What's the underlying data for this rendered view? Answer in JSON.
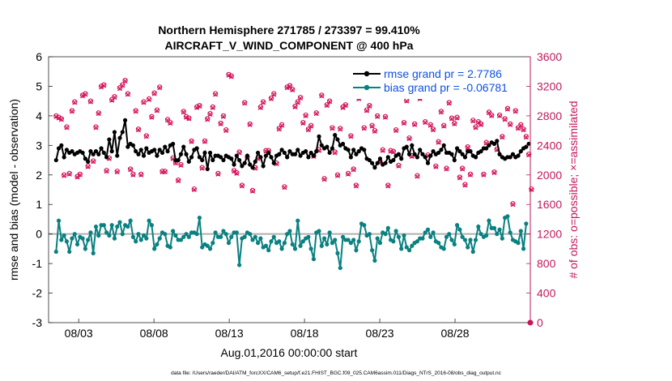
{
  "chart_data": {
    "type": "line",
    "title_line1": "Northern Hemisphere 271785 / 273397 = 99.410%",
    "title_line2": "AIRCRAFT_V_WIND_COMPONENT @ 400 hPa",
    "ylabel_left": "rmse and bias (model - observation)",
    "ylabel_right": "# of obs: o=possible; ×=assimilated",
    "xlabel": "Aug.01,2016 00:00:00 start",
    "footer": "data file: /Users/raeder/DAI/ATM_forcXX/CAM6_setup/f.e21.FHIST_BGC.f09_025.CAM6assim.011/Diags_NTrS_2016-08/obs_diag_output.nc",
    "xlim": [
      1,
      33
    ],
    "xticks": [
      3,
      8,
      13,
      18,
      23,
      28
    ],
    "xtick_labels": [
      "08/03",
      "08/08",
      "08/13",
      "08/18",
      "08/23",
      "08/28"
    ],
    "ylim_left": [
      -3,
      6
    ],
    "yticks_left": [
      -3,
      -2,
      -1,
      0,
      1,
      2,
      3,
      4,
      5,
      6
    ],
    "ytick_labels_left": [
      "-3",
      "-2",
      "-1",
      "0",
      "1",
      "2",
      "3",
      "4",
      "5",
      "6"
    ],
    "ylim_right": [
      0,
      3600
    ],
    "yticks_right": [
      0,
      400,
      800,
      1200,
      1600,
      2000,
      2400,
      2800,
      3200,
      3600
    ],
    "ytick_labels_right": [
      "0",
      "400",
      "800",
      "1200",
      "1600",
      "2000",
      "2400",
      "2800",
      "3200",
      "3600"
    ],
    "legend": [
      {
        "label": "rmse grand pr = 2.7786",
        "series": "rmse"
      },
      {
        "label": "bias grand pr = -0.06781",
        "series": "bias"
      }
    ],
    "colors": {
      "rmse": "#000000",
      "bias": "#0a8080",
      "obs": "#d4145a",
      "right_axis": "#c2185b",
      "legend_text": "#1050e0",
      "zero_line": "#b0b0b0"
    },
    "rmse": [
      2.5,
      2.9,
      3.0,
      2.6,
      2.85,
      2.75,
      2.8,
      2.7,
      2.75,
      2.8,
      2.75,
      2.55,
      2.45,
      2.8,
      2.7,
      2.8,
      2.7,
      2.9,
      2.75,
      2.6,
      3.2,
      2.8,
      3.45,
      2.65,
      3.25,
      3.45,
      3.85,
      2.95,
      3.05,
      3.0,
      2.8,
      2.7,
      2.85,
      2.65,
      2.9,
      2.75,
      2.8,
      2.85,
      2.65,
      2.85,
      2.75,
      2.95,
      2.8,
      3.0,
      3.05,
      2.5,
      2.5,
      2.7,
      2.95,
      2.7,
      2.45,
      2.6,
      2.85,
      2.9,
      2.6,
      2.5,
      2.75,
      2.2,
      2.75,
      2.5,
      2.65,
      2.65,
      2.6,
      2.5,
      2.65,
      2.6,
      2.55,
      2.35,
      2.65,
      2.5,
      2.3,
      2.4,
      2.65,
      2.35,
      2.25,
      2.45,
      2.75,
      2.6,
      2.3,
      2.65,
      2.75,
      2.6,
      2.4,
      2.65,
      2.7,
      2.85,
      2.75,
      2.6,
      2.8,
      2.7,
      2.7,
      2.85,
      2.65,
      2.75,
      2.8,
      2.6,
      2.75,
      2.65,
      2.8,
      3.3,
      3.0,
      2.9,
      2.95,
      2.75,
      2.9,
      3.35,
      3.2,
      3.0,
      3.05,
      2.9,
      2.85,
      2.6,
      2.85,
      2.7,
      2.8,
      2.9,
      2.85,
      2.55,
      2.5,
      2.4,
      2.25,
      2.4,
      2.55,
      2.35,
      2.4,
      2.6,
      2.45,
      2.5,
      2.65,
      2.7,
      2.55,
      2.9,
      2.95,
      2.7,
      3.0,
      2.7,
      2.6,
      2.85,
      2.7,
      2.6,
      2.4,
      2.65,
      2.8,
      2.7,
      2.75,
      2.85,
      3.0,
      2.75,
      2.75,
      2.7,
      2.5,
      2.9,
      2.8,
      2.7,
      2.6,
      2.8,
      2.8,
      2.65,
      2.6,
      2.75,
      2.8,
      2.9,
      2.9,
      3.0,
      3.1,
      3.05,
      3.15,
      2.7,
      2.6,
      2.55,
      2.6,
      2.6,
      2.7,
      2.6,
      2.65,
      2.8,
      2.9,
      2.95,
      3.05
    ],
    "bias": [
      -0.6,
      0.45,
      -0.2,
      -0.05,
      -0.25,
      -0.6,
      -0.15,
      0.0,
      -0.35,
      -0.1,
      -0.15,
      -0.5,
      -0.2,
      0.05,
      -0.65,
      0.25,
      -0.05,
      0.3,
      0.3,
      0.05,
      -0.05,
      0.3,
      -0.15,
      0.25,
      0.4,
      0.0,
      0.3,
      0.25,
      0.45,
      -0.1,
      -0.25,
      0.0,
      -0.2,
      -0.05,
      -0.15,
      0.45,
      0.3,
      -0.5,
      -0.35,
      -0.15,
      0.05,
      0.0,
      -0.4,
      -0.45,
      0.1,
      -0.05,
      -0.2,
      -0.2,
      -0.1,
      0.0,
      -0.1,
      0.05,
      0.05,
      0.0,
      0.55,
      -0.45,
      -0.35,
      -0.4,
      -0.5,
      -0.3,
      0.05,
      -0.1,
      -0.1,
      0.1,
      0.0,
      -0.3,
      -0.1,
      0.05,
      0.05,
      -1.05,
      -0.15,
      -0.1,
      0.05,
      0.0,
      -0.2,
      -0.1,
      -0.3,
      -0.15,
      -0.45,
      -0.4,
      -0.55,
      -0.25,
      -0.1,
      -0.3,
      -0.25,
      -0.5,
      -0.3,
      0.0,
      0.1,
      -0.35,
      -0.5,
      0.45,
      -0.4,
      -0.25,
      -0.15,
      -0.1,
      -0.5,
      -0.85,
      0.05,
      0.1,
      -0.4,
      -0.15,
      -0.35,
      0.05,
      -0.3,
      -0.2,
      -0.65,
      -1.15,
      -0.1,
      -0.2,
      -0.2,
      -0.3,
      -0.2,
      -0.55,
      -0.25,
      0.35,
      0.3,
      -0.05,
      0.0,
      -0.55,
      -0.9,
      -0.15,
      -0.3,
      0.05,
      0.0,
      0.2,
      -0.2,
      -0.25,
      0.1,
      -0.1,
      -0.5,
      -0.05,
      -0.45,
      -0.55,
      -0.4,
      -0.3,
      -0.25,
      -0.15,
      -0.15,
      0.05,
      0.15,
      -0.1,
      0.05,
      -0.25,
      -0.3,
      -0.45,
      -0.5,
      -0.1,
      0.0,
      -0.2,
      -0.35,
      0.3,
      0.15,
      -0.1,
      -0.2,
      -0.45,
      -0.2,
      -0.6,
      -0.2,
      0.25,
      0.0,
      -0.1,
      -0.05,
      0.45,
      0.2,
      0.2,
      0.0,
      0.15,
      -0.15,
      0.55,
      0.6,
      0.05,
      -0.2,
      -0.25,
      -0.3,
      0.1,
      -0.5,
      0.35
    ],
    "obs_possible": [
      2800,
      2780,
      2760,
      2000,
      2650,
      2020,
      2870,
      2990,
      1980,
      2010,
      3080,
      3100,
      2120,
      3000,
      2190,
      2650,
      2840,
      3200,
      3220,
      2060,
      2230,
      3020,
      3060,
      2050,
      3180,
      3220,
      3280,
      3100,
      2080,
      2010,
      2870,
      2620,
      2010,
      2990,
      2530,
      3030,
      2790,
      3110,
      2880,
      3190,
      2050,
      2050,
      2750,
      2710,
      2230,
      2170,
      1930,
      2140,
      2860,
      2790,
      2770,
      2460,
      1810,
      2920,
      2940,
      2100,
      2460,
      2760,
      2830,
      2920,
      3100,
      2020,
      2700,
      2800,
      2610,
      3360,
      3340,
      2060,
      2030,
      2310,
      1860,
      2980,
      2240,
      2690,
      1790,
      2100,
      2230,
      2920,
      2990,
      2330,
      2330,
      3040,
      3100,
      2160,
      2630,
      2680,
      1840,
      3190,
      3210,
      3160,
      2930,
      2990,
      3050,
      2710,
      2810,
      2620,
      2670,
      2260,
      2840,
      2340,
      3080,
      1950,
      2950,
      3000,
      2640,
      2310,
      2000,
      2630,
      2920,
      2950,
      2020,
      2530,
      2080,
      1860,
      3040,
      3180,
      2640,
      2880,
      2940,
      2670,
      2600,
      2800,
      2180,
      2340,
      2790,
      1860,
      2330,
      2320,
      2610,
      2130,
      3130,
      2710,
      3010,
      2500,
      2260,
      2690,
      1990,
      3040,
      3120,
      2720,
      2270,
      2680,
      2620,
      2120,
      2450,
      2860,
      2670,
      2090,
      2980,
      2770,
      2700,
      2780,
      1970,
      2090,
      1870,
      2380,
      2010,
      2740,
      2650,
      2720,
      2690,
      2010,
      2440,
      2850,
      2810,
      2040,
      2350,
      2810,
      2520,
      2760,
      2900,
      2690,
      1610,
      2870,
      2640,
      2680,
      2620,
      2520,
      2280,
      1810
    ],
    "obs_assimilated": [
      2790,
      2770,
      2750,
      1990,
      2640,
      2010,
      2860,
      2980,
      1970,
      2000,
      3070,
      3090,
      2110,
      2990,
      2180,
      2640,
      2830,
      3190,
      3210,
      2050,
      2220,
      3010,
      3050,
      2040,
      3170,
      3210,
      3270,
      3090,
      2070,
      2000,
      2860,
      2610,
      2000,
      2980,
      2520,
      3020,
      2780,
      3100,
      2870,
      3180,
      2040,
      2040,
      2740,
      2700,
      2220,
      2160,
      1920,
      2130,
      2850,
      2780,
      2760,
      2450,
      1800,
      2910,
      2930,
      2090,
      2450,
      2750,
      2820,
      2910,
      3090,
      2010,
      2690,
      2790,
      2600,
      3350,
      3330,
      2050,
      2020,
      2300,
      1850,
      2970,
      2230,
      2680,
      1780,
      2090,
      2220,
      2910,
      2980,
      2320,
      2320,
      3030,
      3090,
      2150,
      2620,
      2670,
      1830,
      3180,
      3200,
      3150,
      2920,
      2980,
      3040,
      2700,
      2800,
      2610,
      2660,
      2250,
      2830,
      2330,
      3070,
      1940,
      2940,
      2990,
      2630,
      2300,
      1990,
      2620,
      2910,
      2940,
      2010,
      2520,
      2070,
      1850,
      3030,
      3170,
      2630,
      2870,
      2930,
      2660,
      2590,
      2790,
      2170,
      2330,
      2780,
      1850,
      2320,
      2310,
      2600,
      2120,
      3120,
      2700,
      3000,
      2490,
      2250,
      2680,
      1980,
      3030,
      3110,
      2710,
      2260,
      2670,
      2610,
      2110,
      2440,
      2850,
      2660,
      2080,
      2970,
      2760,
      2690,
      2770,
      1960,
      2080,
      1860,
      2370,
      2000,
      2730,
      2640,
      2710,
      2680,
      2000,
      2430,
      2840,
      2800,
      2030,
      2340,
      2800,
      2510,
      2750,
      2890,
      2680,
      1600,
      2860,
      2630,
      2670,
      2610,
      2510,
      2270,
      1800
    ],
    "obs_first_point": 0
  }
}
